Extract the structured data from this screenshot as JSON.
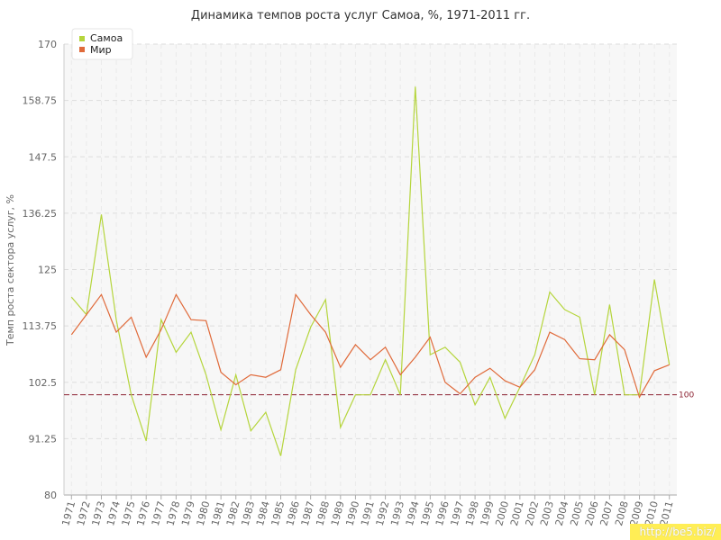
{
  "chart_data": {
    "type": "line",
    "title": "Динамика темпов роста услуг Самоа, %, 1971-2011 гг.",
    "ylabel": "Темп роста сектора услуг, %",
    "xlabel": "",
    "ylim": [
      80,
      170
    ],
    "yticks": [
      "80",
      "91.25",
      "102.5",
      "113.75",
      "125",
      "136.25",
      "147.5",
      "158.75",
      "170"
    ],
    "grid": true,
    "legend": "top-left",
    "reference_line": {
      "value": 100,
      "label": "100",
      "color": "#8b2030"
    },
    "x": [
      "1971",
      "1972",
      "1973",
      "1974",
      "1975",
      "1976",
      "1977",
      "1978",
      "1979",
      "1980",
      "1981",
      "1982",
      "1983",
      "1984",
      "1985",
      "1986",
      "1987",
      "1988",
      "1989",
      "1990",
      "1991",
      "1992",
      "1993",
      "1994",
      "1995",
      "1996",
      "1997",
      "1998",
      "1999",
      "2000",
      "2001",
      "2002",
      "2003",
      "2004",
      "2005",
      "2006",
      "2007",
      "2008",
      "2009",
      "2010",
      "2011"
    ],
    "series": [
      {
        "name": "Самоа",
        "color": "#b5d53c",
        "values": [
          119.5,
          116,
          136,
          115,
          100,
          90.8,
          115,
          108.5,
          112.5,
          104,
          93,
          104,
          92.8,
          96.5,
          87.8,
          105,
          113.5,
          119,
          93.5,
          100,
          100,
          107,
          100,
          161.5,
          108,
          109.5,
          106.5,
          98,
          103.5,
          95.3,
          101.5,
          108,
          120.5,
          117,
          115.5,
          100,
          118,
          100,
          100,
          123,
          106
        ]
      },
      {
        "name": "Мир",
        "color": "#e06a3a",
        "values": [
          112,
          116,
          120,
          112.5,
          115.5,
          107.5,
          113,
          120,
          115,
          114.8,
          104.5,
          102,
          104,
          103.5,
          105,
          120,
          116,
          112.5,
          105.5,
          110,
          107,
          109.5,
          104,
          107.5,
          111.5,
          102.5,
          100.2,
          103.5,
          105.3,
          102.8,
          101.5,
          105,
          112.5,
          111,
          107.2,
          107,
          112,
          109,
          99.5,
          104.8,
          106
        ]
      }
    ]
  },
  "watermark": "http://be5.biz/"
}
